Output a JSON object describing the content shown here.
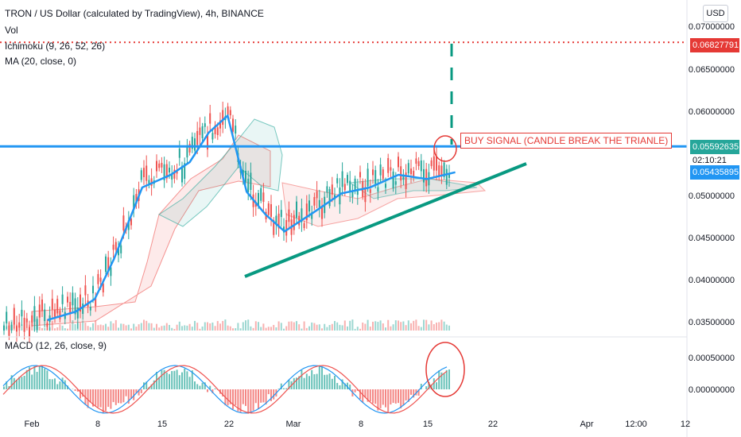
{
  "legend": {
    "symbol": "TRON / US Dollar (calculated by TradingView), 4h, BINANCE",
    "vol": "Vol",
    "ichimoku": "Ichimoku (9, 26, 52, 26)",
    "ma": "MA (20, close, 0)",
    "macd": "MACD (12, 26, close, 9)"
  },
  "currency_button": "USD",
  "annotation": "BUY SIGNAL (CANDLE BREAK THE TRIANLE)",
  "price_axis": [
    "0.07000000",
    "0.06500000",
    "0.06000000",
    "0.05000000",
    "0.04500000",
    "0.04000000",
    "0.03500000"
  ],
  "macd_axis": [
    "0.00050000",
    "0.00000000"
  ],
  "tags": {
    "target": "0.06827791",
    "last_price": "0.05592635",
    "countdown": "02:10:21",
    "line_price": "0.05435895"
  },
  "x_axis": [
    "Feb",
    "8",
    "15",
    "22",
    "Mar",
    "8",
    "15",
    "22",
    "Apr",
    "12:00",
    "12"
  ],
  "colors": {
    "up": "#26a69a",
    "down": "#ef5350",
    "ma": "#2196f3",
    "trendline": "#089981",
    "resistance": "#2196f3",
    "target_line": "#e53935"
  },
  "chart_data": {
    "type": "line",
    "title": "TRON / US Dollar (calculated by TradingView), 4h, BINANCE",
    "x_range": [
      "2021-01-29",
      "2021-04-13"
    ],
    "ylim": [
      0.0345,
      0.0715
    ],
    "ma_series": {
      "name": "MA (20, close, 0)",
      "x": [
        "2021-02-03",
        "2021-02-06",
        "2021-02-08",
        "2021-02-10",
        "2021-02-13",
        "2021-02-16",
        "2021-02-18",
        "2021-02-20",
        "2021-02-22",
        "2021-02-24",
        "2021-02-26",
        "2021-02-28",
        "2021-03-03",
        "2021-03-06",
        "2021-03-09",
        "2021-03-12",
        "2021-03-15",
        "2021-03-18"
      ],
      "y": [
        0.0353,
        0.0363,
        0.0378,
        0.0425,
        0.051,
        0.0525,
        0.054,
        0.0575,
        0.0595,
        0.0505,
        0.0478,
        0.0458,
        0.048,
        0.0503,
        0.051,
        0.0525,
        0.052,
        0.0528
      ]
    },
    "resistance_level": 0.05435895,
    "target_level": 0.06827791,
    "last_price": 0.05592635,
    "trendline": {
      "x": [
        "2021-02-23",
        "2021-03-22"
      ],
      "y": [
        0.041,
        0.0555
      ]
    },
    "ichimoku": "cloud shown (green/red)",
    "macd": {
      "name": "MACD (12, 26, close, 9)",
      "range": [
        -0.0004,
        0.0009
      ]
    },
    "grid": false
  }
}
